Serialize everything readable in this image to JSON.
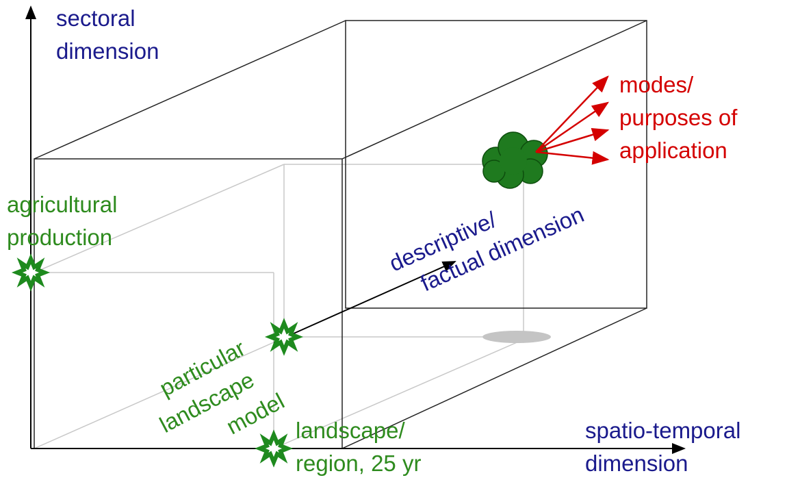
{
  "axes": {
    "vertical": [
      "sectoral",
      "dimension"
    ],
    "horizontal": [
      "spatio-temporal",
      "dimension"
    ],
    "depth": [
      "descriptive/",
      "factual dimension"
    ]
  },
  "points": {
    "agricultural": [
      "agricultural",
      "production"
    ],
    "model": [
      "particular",
      "landscape",
      "model"
    ],
    "region": [
      "landscape/",
      "region, 25 yr"
    ]
  },
  "application": [
    "modes/",
    "purposes of",
    "application"
  ]
}
